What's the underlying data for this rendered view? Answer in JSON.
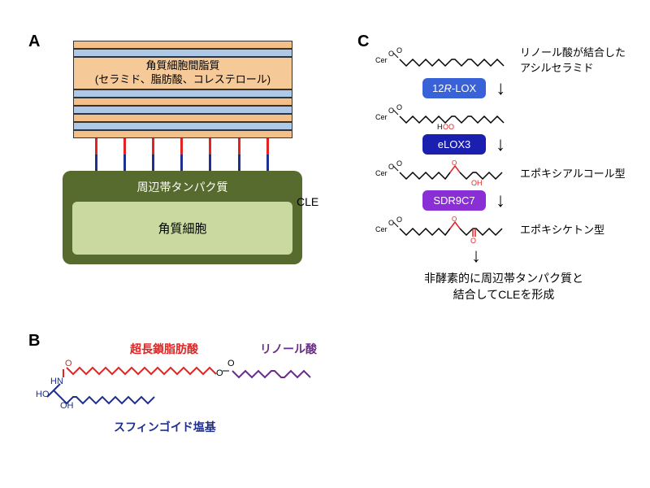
{
  "panelA": {
    "label": "A",
    "lipid_title_l1": "角質細胞間脂質",
    "lipid_title_l2": "(セラミド、脂肪酸、コレステロール)",
    "cle_label": "CLE",
    "protein_title": "周辺帯タンパク質",
    "cell_label": "角質細胞",
    "colors": {
      "layer_orange": "#f4c08a",
      "layer_blue": "#aec8e8",
      "box_bg": "#f6c999",
      "cle_red": "#e32322",
      "cle_blue": "#1e2f8f",
      "protein_outer": "#576b2f",
      "cell_inner": "#c9d9a0"
    },
    "cle_positions_pct": [
      10,
      23,
      36,
      49,
      62,
      75,
      88
    ]
  },
  "panelB": {
    "label": "B",
    "vlcfa_label": "超長鎖脂肪酸",
    "linoleic_label": "リノール酸",
    "sphingoid_label": "スフィンゴイド塩基",
    "colors": {
      "red": "#e32322",
      "blue": "#1e2f8f",
      "purple": "#6b2a8a"
    }
  },
  "panelC": {
    "label": "C",
    "step0_text_l1": "リノール酸が結合した",
    "step0_text_l2": "アシルセラミド",
    "enzyme1": "12R-LOX",
    "enzyme2": "eLOX3",
    "enzyme3": "SDR9C7",
    "step2_text": "エポキシアルコール型",
    "step3_text": "エポキシケトン型",
    "final_l1": "非酵素的に周辺帯タンパク質と",
    "final_l2": "結合してCLEを形成",
    "colors": {
      "enzyme1_bg": "#3a62d8",
      "enzyme2_bg": "#1a1fb0",
      "enzyme3_bg": "#8a2fd6",
      "hoo_red": "#e32322",
      "arrow": "#000000"
    },
    "cer_label": "Cer",
    "hoo_label": "HOO",
    "oh_label": "OH",
    "o_label": "O"
  }
}
